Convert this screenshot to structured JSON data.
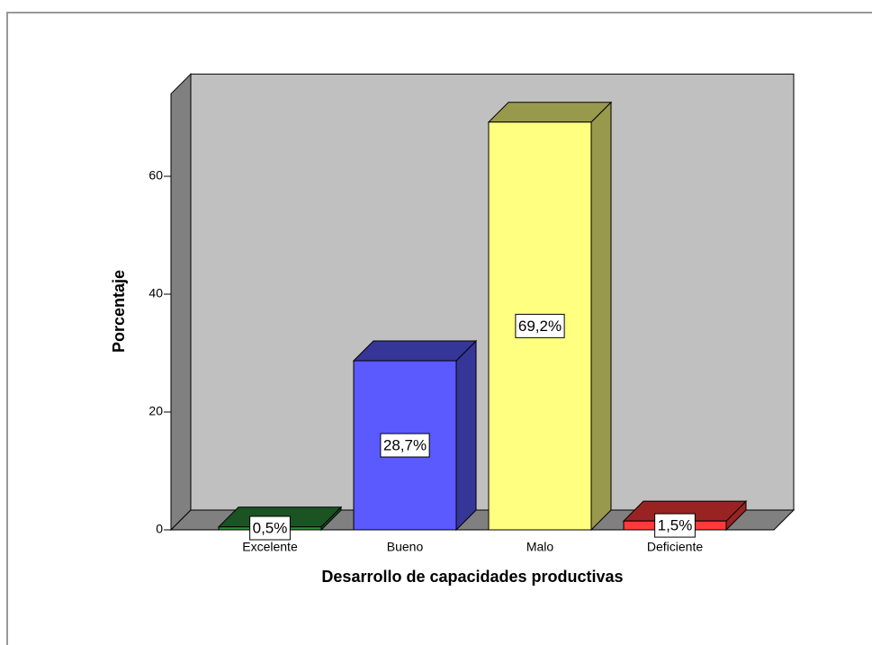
{
  "chart_data": {
    "type": "bar3d",
    "x_label": "Desarrollo de capacidades productivas",
    "y_label": "Porcentaje",
    "categories": [
      "Excelente",
      "Bueno",
      "Malo",
      "Deficiente"
    ],
    "values": [
      0.5,
      28.7,
      69.2,
      1.5
    ],
    "value_labels": [
      "0,5%",
      "28,7%",
      "69,2%",
      "1,5%"
    ],
    "colors": [
      "#2e8b3a",
      "#5a5aff",
      "#ffff80",
      "#ff3a3a"
    ],
    "ylim": [
      0,
      74
    ],
    "yticks": [
      0,
      20,
      40,
      60
    ]
  }
}
